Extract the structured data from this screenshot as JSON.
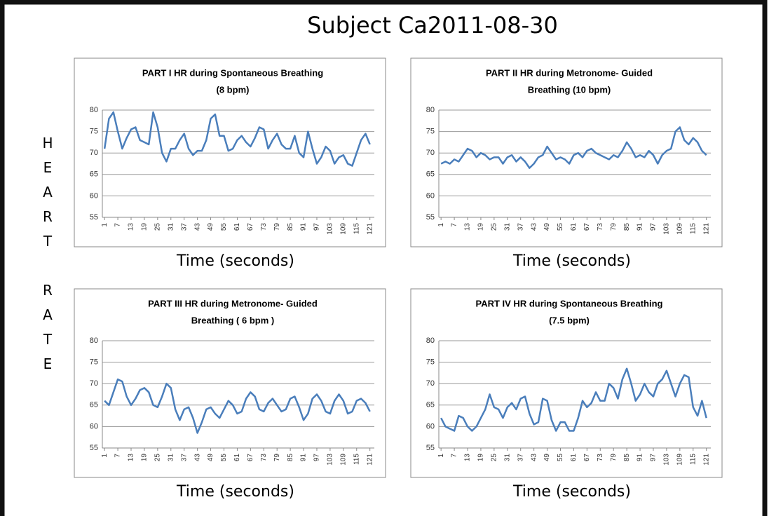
{
  "title": "Subject Ca2011-08-30",
  "ylabel": "HEART RATE",
  "chart_data": [
    {
      "type": "line",
      "title": [
        "PART I HR during Spontaneous Breathing",
        "(8 bpm)"
      ],
      "xlabel": "Time (seconds)",
      "x": [
        1,
        3,
        5,
        7,
        9,
        11,
        13,
        15,
        17,
        19,
        21,
        23,
        25,
        27,
        29,
        31,
        33,
        35,
        37,
        39,
        41,
        43,
        45,
        47,
        49,
        51,
        53,
        55,
        57,
        59,
        61,
        63,
        65,
        67,
        69,
        71,
        73,
        75,
        77,
        79,
        81,
        83,
        85,
        87,
        89,
        91,
        93,
        95,
        97,
        99,
        101,
        103,
        105,
        107,
        109,
        111,
        113,
        115,
        117,
        119,
        121
      ],
      "series": [
        {
          "name": "HR",
          "color": "#4a7ebb",
          "values": [
            71,
            78,
            79.5,
            75,
            71,
            73.5,
            75.5,
            76,
            73,
            72.5,
            72,
            79.5,
            76,
            70,
            68,
            71,
            71,
            73,
            74.5,
            71,
            69.5,
            70.5,
            70.5,
            73,
            78,
            79,
            74,
            74,
            70.5,
            71,
            73,
            74,
            72.5,
            71.5,
            73.5,
            76,
            75.5,
            71,
            73,
            74.5,
            72,
            71,
            71,
            74,
            70,
            69,
            75,
            71,
            67.5,
            69,
            71.5,
            70.5,
            67.5,
            69,
            69.5,
            67.5,
            67,
            70,
            73,
            74.5,
            72
          ]
        }
      ],
      "xlim": [
        0,
        123
      ],
      "xticks": [
        1,
        7,
        13,
        19,
        25,
        31,
        37,
        43,
        49,
        55,
        61,
        67,
        73,
        79,
        85,
        91,
        97,
        103,
        109,
        115,
        121
      ],
      "ylim": [
        55,
        80
      ],
      "yticks": [
        55,
        60,
        65,
        70,
        75,
        80
      ],
      "grid": true
    },
    {
      "type": "line",
      "title": [
        "PART II HR during  Metronome- Guided",
        "Breathing (10 bpm)"
      ],
      "xlabel": "Time (seconds)",
      "x": [
        1,
        3,
        5,
        7,
        9,
        11,
        13,
        15,
        17,
        19,
        21,
        23,
        25,
        27,
        29,
        31,
        33,
        35,
        37,
        39,
        41,
        43,
        45,
        47,
        49,
        51,
        53,
        55,
        57,
        59,
        61,
        63,
        65,
        67,
        69,
        71,
        73,
        75,
        77,
        79,
        81,
        83,
        85,
        87,
        89,
        91,
        93,
        95,
        97,
        99,
        101,
        103,
        105,
        107,
        109,
        111,
        113,
        115,
        117,
        119,
        121
      ],
      "series": [
        {
          "name": "HR",
          "color": "#4a7ebb",
          "values": [
            67.5,
            68,
            67.5,
            68.5,
            68,
            69.5,
            71,
            70.5,
            69,
            70,
            69.5,
            68.5,
            69,
            69,
            67.5,
            69,
            69.5,
            68,
            69,
            68,
            66.5,
            67.5,
            69,
            69.5,
            71.5,
            70,
            68.5,
            69,
            68.5,
            67.5,
            69.5,
            70,
            69,
            70.5,
            71,
            70,
            69.5,
            69,
            68.5,
            69.5,
            69,
            70.5,
            72.5,
            71,
            69,
            69.5,
            69,
            70.5,
            69.5,
            67.5,
            69.5,
            70.5,
            71,
            75,
            76,
            73,
            72,
            73.5,
            72.5,
            70.5,
            69.5
          ]
        }
      ],
      "xlim": [
        0,
        123
      ],
      "xticks": [
        1,
        7,
        13,
        19,
        25,
        31,
        37,
        43,
        49,
        55,
        61,
        67,
        73,
        79,
        85,
        91,
        97,
        103,
        109,
        115,
        121
      ],
      "ylim": [
        55,
        80
      ],
      "yticks": [
        55,
        60,
        65,
        70,
        75,
        80
      ],
      "grid": true
    },
    {
      "type": "line",
      "title": [
        "PART III HR during Metronome- Guided",
        "Breathing ( 6 bpm )"
      ],
      "xlabel": "Time (seconds)",
      "x": [
        1,
        3,
        5,
        7,
        9,
        11,
        13,
        15,
        17,
        19,
        21,
        23,
        25,
        27,
        29,
        31,
        33,
        35,
        37,
        39,
        41,
        43,
        45,
        47,
        49,
        51,
        53,
        55,
        57,
        59,
        61,
        63,
        65,
        67,
        69,
        71,
        73,
        75,
        77,
        79,
        81,
        83,
        85,
        87,
        89,
        91,
        93,
        95,
        97,
        99,
        101,
        103,
        105,
        107,
        109,
        111,
        113,
        115,
        117,
        119,
        121
      ],
      "series": [
        {
          "name": "HR",
          "color": "#4a7ebb",
          "values": [
            66,
            65,
            68,
            71,
            70.5,
            67,
            65,
            66.5,
            68.5,
            69,
            68,
            65,
            64.5,
            67,
            70,
            69,
            64,
            61.5,
            64,
            64.5,
            62,
            58.5,
            61,
            64,
            64.5,
            63,
            62,
            64,
            66,
            65,
            63,
            63.5,
            66.5,
            68,
            67,
            64,
            63.5,
            65.5,
            66.5,
            65,
            63.5,
            64,
            66.5,
            67,
            64.5,
            61.5,
            63,
            66.5,
            67.5,
            66,
            63.5,
            63,
            66,
            67.5,
            66,
            63,
            63.5,
            66,
            66.5,
            65.5,
            63.5
          ]
        }
      ],
      "xlim": [
        0,
        123
      ],
      "xticks": [
        1,
        7,
        13,
        19,
        25,
        31,
        37,
        43,
        49,
        55,
        61,
        67,
        73,
        79,
        85,
        91,
        97,
        103,
        109,
        115,
        121
      ],
      "ylim": [
        55,
        80
      ],
      "yticks": [
        55,
        60,
        65,
        70,
        75,
        80
      ],
      "grid": true
    },
    {
      "type": "line",
      "title": [
        "PART IV HR during Spontaneous Breathing",
        "(7.5  bpm)"
      ],
      "xlabel": "Time (seconds)",
      "x": [
        1,
        3,
        5,
        7,
        9,
        11,
        13,
        15,
        17,
        19,
        21,
        23,
        25,
        27,
        29,
        31,
        33,
        35,
        37,
        39,
        41,
        43,
        45,
        47,
        49,
        51,
        53,
        55,
        57,
        59,
        61,
        63,
        65,
        67,
        69,
        71,
        73,
        75,
        77,
        79,
        81,
        83,
        85,
        87,
        89,
        91,
        93,
        95,
        97,
        99,
        101,
        103,
        105,
        107,
        109,
        111,
        113,
        115,
        117,
        119,
        121
      ],
      "series": [
        {
          "name": "HR",
          "color": "#4a7ebb",
          "values": [
            62,
            60,
            59.5,
            59,
            62.5,
            62,
            60,
            59,
            60,
            62,
            64,
            67.5,
            64.5,
            64,
            62,
            64.5,
            65.5,
            64,
            66.5,
            67,
            63,
            60.5,
            61,
            66.5,
            66,
            61.5,
            59,
            61,
            61,
            59,
            59,
            62,
            66,
            64.5,
            65.5,
            68,
            66,
            66,
            70,
            69,
            66.5,
            71,
            73.5,
            70,
            66,
            67.5,
            70,
            68,
            67,
            70,
            71,
            73,
            70,
            67,
            70,
            72,
            71.5,
            64.5,
            62.5,
            66,
            62
          ]
        }
      ],
      "xlim": [
        0,
        123
      ],
      "xticks": [
        1,
        7,
        13,
        19,
        25,
        31,
        37,
        43,
        49,
        55,
        61,
        67,
        73,
        79,
        85,
        91,
        97,
        103,
        109,
        115,
        121
      ],
      "ylim": [
        55,
        80
      ],
      "yticks": [
        55,
        60,
        65,
        70,
        75,
        80
      ],
      "grid": true
    }
  ]
}
